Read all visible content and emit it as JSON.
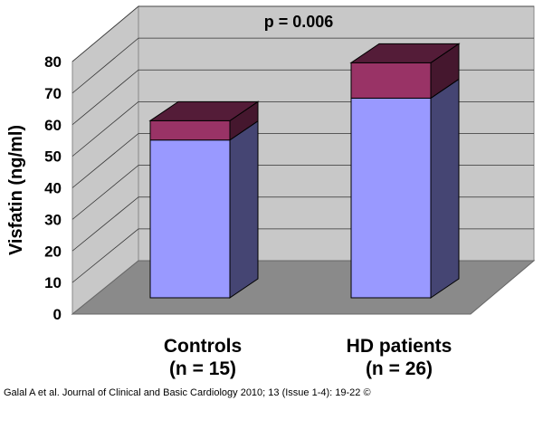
{
  "chart_data": {
    "type": "bar",
    "style": "3d-stacked",
    "categories": [
      {
        "line1": "Controls",
        "line2": "(n = 15)"
      },
      {
        "line1": "HD patients",
        "line2": "(n = 26)"
      }
    ],
    "series": [
      {
        "values": [
          49,
          62
        ],
        "color": "#9999ff"
      },
      {
        "values": [
          6,
          11
        ],
        "color": "#993366"
      }
    ],
    "ylabel": "Visfatin (ng/ml)",
    "ylim": [
      0,
      80
    ],
    "yticks": [
      0,
      10,
      20,
      30,
      40,
      50,
      60,
      70,
      80
    ],
    "grid": true,
    "annotation": "p = 0.006"
  },
  "citation": "Galal A et al. Journal of Clinical and Basic Cardiology 2010; 13 (Issue 1-4): 19-22 ©"
}
